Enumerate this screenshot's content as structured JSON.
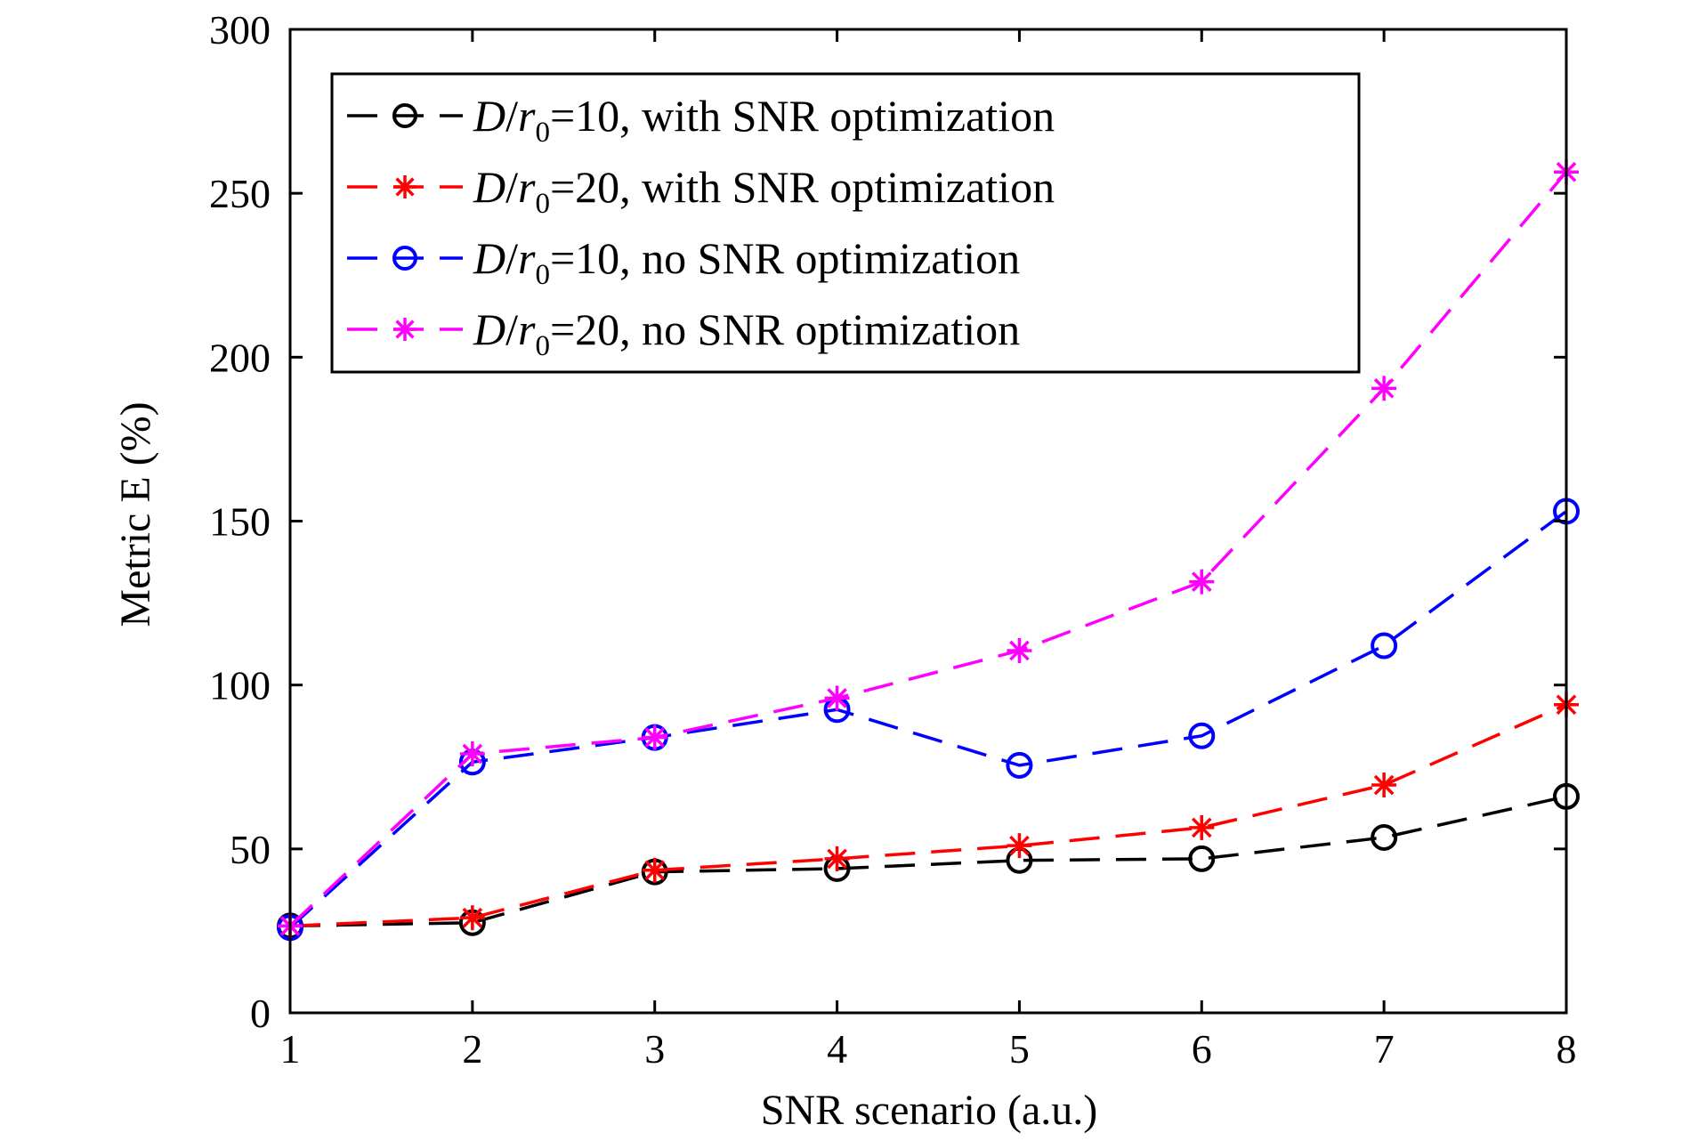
{
  "chart_data": {
    "type": "line",
    "xlabel": "SNR scenario (a.u.)",
    "ylabel": "Metric E (%)",
    "xlim": [
      1,
      8
    ],
    "ylim": [
      0,
      300
    ],
    "x": [
      1,
      2,
      3,
      4,
      5,
      6,
      7,
      8
    ],
    "x_ticks": [
      "1",
      "2",
      "3",
      "4",
      "5",
      "6",
      "7",
      "8"
    ],
    "y_ticks": [
      "0",
      "50",
      "100",
      "150",
      "200",
      "250",
      "300"
    ],
    "grid": false,
    "legend_position": "top-left",
    "series": [
      {
        "name": "D/r0=10, with SNR optimization",
        "legend_parts": {
          "var": "D",
          "sep": "/",
          "var2": "r",
          "sub": "0",
          "rest": "=10, with SNR optimization"
        },
        "color": "#000000",
        "marker": "circle",
        "line_style": "dashed",
        "values": [
          26.5,
          27.5,
          43,
          44,
          46.5,
          47,
          53.5,
          66
        ]
      },
      {
        "name": "D/r0=20, with SNR optimization",
        "legend_parts": {
          "var": "D",
          "sep": "/",
          "var2": "r",
          "sub": "0",
          "rest": "=20, with SNR optimization"
        },
        "color": "#ff0000",
        "marker": "asterisk",
        "line_style": "dashed",
        "values": [
          26.5,
          29,
          43.5,
          47,
          51,
          56.5,
          69.5,
          94
        ]
      },
      {
        "name": "D/r0=10, no SNR optimization",
        "legend_parts": {
          "var": "D",
          "sep": "/",
          "var2": "r",
          "sub": "0",
          "rest": "=10, no SNR optimization"
        },
        "color": "#0000ff",
        "marker": "circle",
        "line_style": "dashed",
        "values": [
          26,
          76.5,
          84,
          92.5,
          75.5,
          84.5,
          112,
          153
        ]
      },
      {
        "name": "D/r0=20, no SNR optimization",
        "legend_parts": {
          "var": "D",
          "sep": "/",
          "var2": "r",
          "sub": "0",
          "rest": "=20, no SNR optimization"
        },
        "color": "#ff00ff",
        "marker": "asterisk",
        "line_style": "dashed",
        "values": [
          26.5,
          79,
          84,
          96,
          110.5,
          131.5,
          190.5,
          256.5
        ]
      }
    ]
  }
}
